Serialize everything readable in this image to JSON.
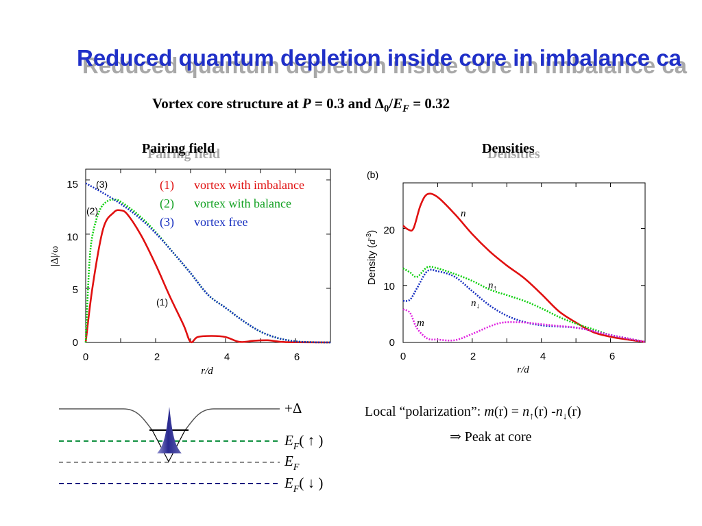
{
  "slide": {
    "title": "Reduced quantum depletion inside core in imbalance ca",
    "subtitle": {
      "prefix": "Vortex core structure at ",
      "P": "P",
      "p_eq": " = 0.3 and ",
      "delta": "Δ",
      "delta_sub": "0",
      "slash": "/",
      "E": "E",
      "E_sub": "F",
      "end": " = 0.32"
    }
  },
  "pairing_panel": {
    "title": "Pairing field",
    "ylabel": "|Δ|/ω",
    "xlabel": "r/d",
    "x_ticks": [
      "0",
      "2",
      "4",
      "6"
    ],
    "y_ticks": [
      "0",
      "5",
      "10",
      "15"
    ],
    "curve_labels": [
      "(3)",
      "(2)",
      "(1)"
    ],
    "legend": [
      {
        "num": "(1)",
        "text": "vortex with imbalance",
        "color": "#e01010"
      },
      {
        "num": "(2)",
        "text": "vortex with balance",
        "color": "#10a020"
      },
      {
        "num": "(3)",
        "text": "vortex free",
        "color": "#1830c0"
      }
    ]
  },
  "density_panel": {
    "title": "Densities",
    "panel_tag": "(b)",
    "ylabel_prefix": "Density (",
    "ylabel_d": "d",
    "ylabel_exp": "-3",
    "ylabel_suffix": ")",
    "xlabel": "r/d",
    "x_ticks": [
      "0",
      "2",
      "4",
      "6"
    ],
    "y_ticks": [
      "0",
      "10",
      "20"
    ],
    "curve_labels": {
      "n": "n",
      "n_up": "n",
      "up_arrow": "↑",
      "n_down": "n",
      "down_arrow": "↓",
      "m": "m"
    }
  },
  "energy_diagram": {
    "plus_delta": "+Δ",
    "ef_up": {
      "E": "E",
      "sub": "F",
      "arrow": "( ↑ )"
    },
    "ef_mid": {
      "E": "E",
      "sub": "F"
    },
    "ef_down": {
      "E": "E",
      "sub": "F",
      "arrow": "( ↓ )"
    }
  },
  "polarization": {
    "prefix": "Local “polarization”: ",
    "m": "m",
    "r1": "(r)",
    "eq": " = ",
    "n1": "n",
    "up": "↑",
    "r2": "(r)",
    "minus": " -",
    "n2": "n",
    "down": "↓",
    "r3": "(r)",
    "peak": "⇒ Peak at core"
  },
  "colors": {
    "title_blue": "#2030c8",
    "red": "#e01010",
    "green": "#10d010",
    "blue": "#1830c0",
    "magenta": "#e020e0",
    "ef_up_green": "#109040",
    "ef_down_navy": "#1a1a80"
  },
  "chart_data": [
    {
      "type": "line",
      "title": "Pairing field",
      "xlabel": "r/d",
      "ylabel": "|Δ|/ω",
      "xlim": [
        0,
        7
      ],
      "ylim": [
        0,
        16
      ],
      "series": [
        {
          "name": "vortex with imbalance",
          "x": [
            0,
            0.2,
            0.5,
            0.8,
            1.0,
            1.2,
            1.6,
            2.0,
            2.4,
            2.8,
            3.0,
            3.2,
            3.6,
            4.0,
            4.4,
            4.8,
            5.2,
            5.6,
            6.0,
            7.0
          ],
          "values": [
            0,
            5.2,
            10.5,
            12.0,
            12.2,
            11.8,
            9.8,
            7.2,
            4.3,
            1.6,
            0.05,
            0.5,
            0.6,
            0.5,
            0.05,
            0.15,
            0.2,
            0.05,
            0.02,
            0.0
          ]
        },
        {
          "name": "vortex with balance",
          "x": [
            0,
            0.1,
            0.2,
            0.4,
            0.6,
            0.8,
            1.0,
            1.5,
            2.0,
            2.5,
            3.0,
            3.5,
            4.0,
            4.5,
            5.0,
            5.5,
            6.0,
            6.5,
            7.0
          ],
          "values": [
            0,
            7.0,
            10.0,
            12.2,
            13.0,
            13.2,
            13.0,
            11.8,
            10.2,
            8.3,
            6.4,
            4.4,
            3.2,
            2.0,
            1.0,
            0.4,
            0.1,
            0.02,
            0.0
          ]
        },
        {
          "name": "vortex free",
          "x": [
            0,
            0.5,
            1.0,
            1.5,
            2.0,
            2.5,
            3.0,
            3.5,
            4.0,
            4.5,
            5.0,
            5.5,
            6.0,
            6.5,
            7.0
          ],
          "values": [
            14.7,
            13.8,
            12.8,
            11.6,
            10.1,
            8.3,
            6.4,
            4.4,
            3.2,
            2.0,
            1.0,
            0.4,
            0.1,
            0.02,
            0.0
          ]
        }
      ]
    },
    {
      "type": "line",
      "title": "Densities",
      "xlabel": "r/d",
      "ylabel": "Density (d-3)",
      "xlim": [
        0,
        7
      ],
      "ylim": [
        0,
        28
      ],
      "series": [
        {
          "name": "n",
          "x": [
            0,
            0.15,
            0.3,
            0.5,
            0.7,
            1.0,
            1.5,
            2.0,
            2.5,
            3.0,
            3.5,
            4.0,
            4.5,
            5.0,
            5.5,
            6.0,
            6.5,
            7.0
          ],
          "values": [
            20.5,
            19.8,
            20.0,
            24.0,
            26.0,
            25.5,
            22.5,
            19.0,
            16.0,
            13.5,
            11.3,
            8.5,
            5.5,
            3.5,
            1.8,
            1.0,
            0.5,
            0.1
          ]
        },
        {
          "name": "n↑",
          "x": [
            0,
            0.2,
            0.4,
            0.7,
            1.0,
            1.5,
            2.0,
            2.5,
            3.0,
            3.5,
            4.0,
            4.5,
            5.0,
            5.5,
            6.0,
            6.5,
            7.0
          ],
          "values": [
            13.0,
            12.3,
            11.5,
            13.2,
            13.0,
            12.0,
            10.8,
            9.3,
            8.3,
            7.3,
            6.0,
            4.5,
            3.3,
            2.3,
            1.3,
            0.7,
            0.1
          ]
        },
        {
          "name": "n↓",
          "x": [
            0,
            0.2,
            0.4,
            0.7,
            1.0,
            1.5,
            2.0,
            2.5,
            3.0,
            3.5,
            4.0,
            4.5,
            5.0,
            5.5,
            6.0,
            6.5,
            7.0
          ],
          "values": [
            7.3,
            7.5,
            9.5,
            12.5,
            12.5,
            11.5,
            9.0,
            6.5,
            4.7,
            3.6,
            3.0,
            2.8,
            2.6,
            2.0,
            1.3,
            0.7,
            0.1
          ]
        },
        {
          "name": "m",
          "x": [
            0,
            0.2,
            0.4,
            0.7,
            1.0,
            1.5,
            2.0,
            2.5,
            2.9,
            3.5,
            4.0,
            4.5,
            5.0,
            5.5,
            6.0,
            6.5,
            7.0
          ],
          "values": [
            5.8,
            5.2,
            2.5,
            0.7,
            0.5,
            0.4,
            1.5,
            2.8,
            3.5,
            3.5,
            3.2,
            2.9,
            2.6,
            2.0,
            1.3,
            0.7,
            0.1
          ]
        }
      ]
    }
  ]
}
